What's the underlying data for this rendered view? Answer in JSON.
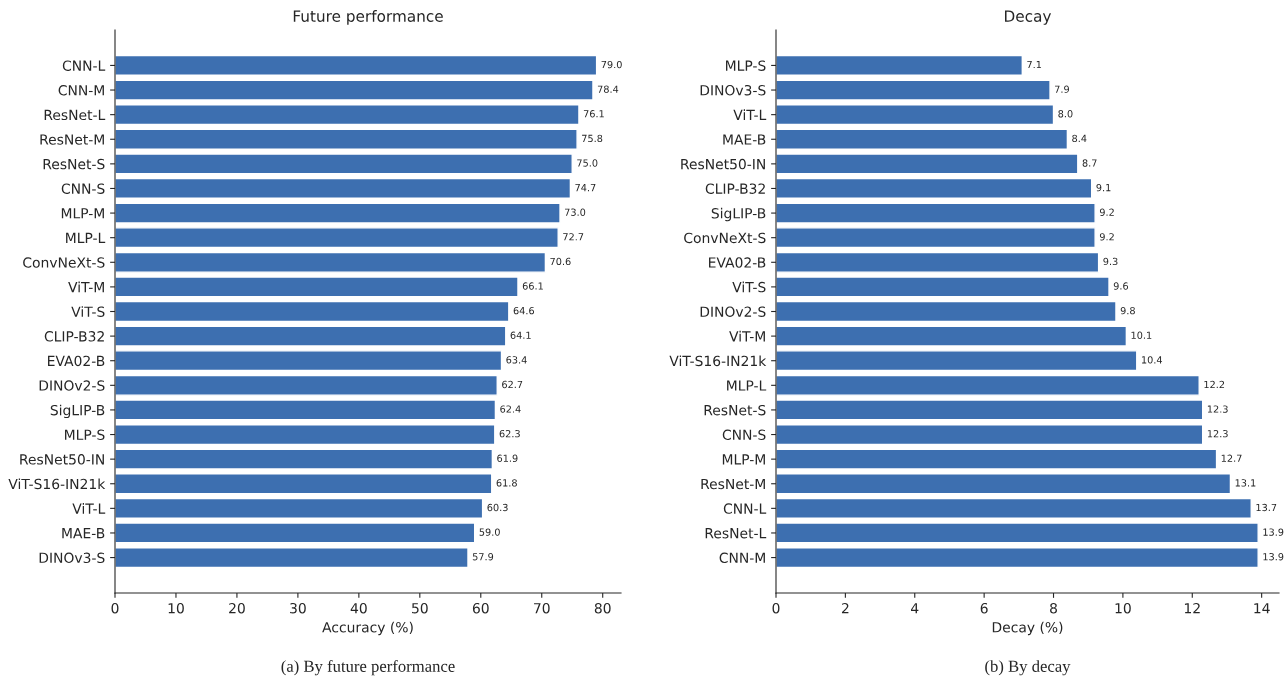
{
  "chart_data": [
    {
      "type": "bar",
      "orientation": "horizontal",
      "title": "Future performance",
      "xlabel": "Accuracy (%)",
      "categories": [
        "CNN-L",
        "CNN-M",
        "ResNet-L",
        "ResNet-M",
        "ResNet-S",
        "CNN-S",
        "MLP-M",
        "MLP-L",
        "ConvNeXt-S",
        "ViT-M",
        "ViT-S",
        "CLIP-B32",
        "EVA02-B",
        "DINOv2-S",
        "SigLIP-B",
        "MLP-S",
        "ResNet50-IN",
        "ViT-S16-IN21k",
        "ViT-L",
        "MAE-B",
        "DINOv3-S"
      ],
      "values": [
        79.0,
        78.4,
        76.1,
        75.8,
        75.0,
        74.7,
        73.0,
        72.7,
        70.6,
        66.1,
        64.6,
        64.1,
        63.4,
        62.7,
        62.4,
        62.3,
        61.9,
        61.8,
        60.3,
        59.0,
        57.9
      ],
      "value_labels": [
        "79.0",
        "78.4",
        "76.1",
        "75.8",
        "75.0",
        "74.7",
        "73.0",
        "72.7",
        "70.6",
        "66.1",
        "64.6",
        "64.1",
        "63.4",
        "62.7",
        "62.4",
        "62.3",
        "61.9",
        "61.8",
        "60.3",
        "59.0",
        "57.9"
      ],
      "color": "#3d6fb0",
      "xlim": [
        0,
        83
      ],
      "xticks": [
        0,
        10,
        20,
        30,
        40,
        50,
        60,
        70,
        80
      ],
      "grid": false,
      "annotations": [
        "(a) By future performance"
      ]
    },
    {
      "type": "bar",
      "orientation": "horizontal",
      "title": "Decay",
      "xlabel": "Decay (%)",
      "categories": [
        "MLP-S",
        "DINOv3-S",
        "ViT-L",
        "MAE-B",
        "ResNet50-IN",
        "CLIP-B32",
        "SigLIP-B",
        "ConvNeXt-S",
        "EVA02-B",
        "ViT-S",
        "DINOv2-S",
        "ViT-M",
        "ViT-S16-IN21k",
        "MLP-L",
        "ResNet-S",
        "CNN-S",
        "MLP-M",
        "ResNet-M",
        "CNN-L",
        "ResNet-L",
        "CNN-M"
      ],
      "values": [
        7.1,
        7.9,
        8.0,
        8.4,
        8.7,
        9.1,
        9.2,
        9.2,
        9.3,
        9.6,
        9.8,
        10.1,
        10.4,
        12.2,
        12.3,
        12.3,
        12.7,
        13.1,
        13.7,
        13.9,
        13.9
      ],
      "value_labels": [
        "7.1",
        "7.9",
        "8.0",
        "8.4",
        "8.7",
        "9.1",
        "9.2",
        "9.2",
        "9.3",
        "9.6",
        "9.8",
        "10.1",
        "10.4",
        "12.2",
        "12.3",
        "12.3",
        "12.7",
        "13.1",
        "13.7",
        "13.9",
        "13.9"
      ],
      "color": "#3d6fb0",
      "xlim": [
        0,
        14.5
      ],
      "xticks": [
        0,
        2,
        4,
        6,
        8,
        10,
        12,
        14
      ],
      "grid": false,
      "annotations": [
        "(b) By decay"
      ]
    }
  ]
}
